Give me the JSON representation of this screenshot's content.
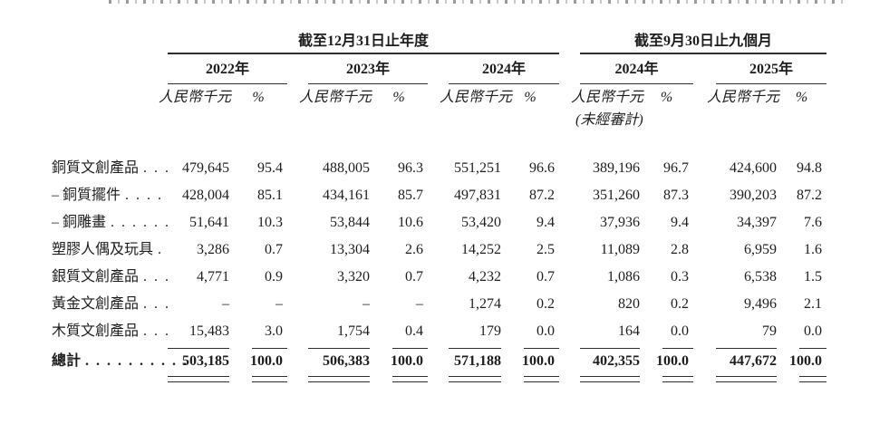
{
  "header": {
    "group1": {
      "title": "截至12月31日止年度"
    },
    "group2": {
      "title": "截至9月30日止九個月"
    },
    "years": [
      "2022年",
      "2023年",
      "2024年",
      "2024年",
      "2025年"
    ],
    "currency_label": "人民幣千元",
    "percent_label": "%",
    "unaudited_note": "(未經審計)"
  },
  "rows": [
    {
      "label": "銅質文創產品",
      "dots": ". . .",
      "c": [
        "479,645",
        "95.4",
        "488,005",
        "96.3",
        "551,251",
        "96.6",
        "389,196",
        "96.7",
        "424,600",
        "94.8"
      ]
    },
    {
      "label": "– 銅質擺件",
      "dots": ". . . .",
      "c": [
        "428,004",
        "85.1",
        "434,161",
        "85.7",
        "497,831",
        "87.2",
        "351,260",
        "87.3",
        "390,203",
        "87.2"
      ]
    },
    {
      "label": "– 銅雕畫",
      "dots": ". . . . . .",
      "c": [
        "51,641",
        "10.3",
        "53,844",
        "10.6",
        "53,420",
        "9.4",
        "37,936",
        "9.4",
        "34,397",
        "7.6"
      ]
    },
    {
      "label": "塑膠人偶及玩具",
      "dots": ".",
      "c": [
        "3,286",
        "0.7",
        "13,304",
        "2.6",
        "14,252",
        "2.5",
        "11,089",
        "2.8",
        "6,959",
        "1.6"
      ]
    },
    {
      "label": "銀質文創產品",
      "dots": ". . .",
      "c": [
        "4,771",
        "0.9",
        "3,320",
        "0.7",
        "4,232",
        "0.7",
        "1,086",
        "0.3",
        "6,538",
        "1.5"
      ]
    },
    {
      "label": "黃金文創產品",
      "dots": ". . .",
      "c": [
        "–",
        "–",
        "–",
        "–",
        "1,274",
        "0.2",
        "820",
        "0.2",
        "9,496",
        "2.1"
      ]
    },
    {
      "label": "木質文創產品",
      "dots": ". . .",
      "c": [
        "15,483",
        "3.0",
        "1,754",
        "0.4",
        "179",
        "0.0",
        "164",
        "0.0",
        "79",
        "0.0"
      ]
    }
  ],
  "total": {
    "label": "總計",
    "dots": ". . . . . . . . . .",
    "c": [
      "503,185",
      "100.0",
      "506,383",
      "100.0",
      "571,188",
      "100.0",
      "402,355",
      "100.0",
      "447,672",
      "100.0"
    ]
  },
  "colors": {
    "text": "#1d1d1f",
    "rule": "#2e2e2e",
    "background": "#ffffff"
  }
}
